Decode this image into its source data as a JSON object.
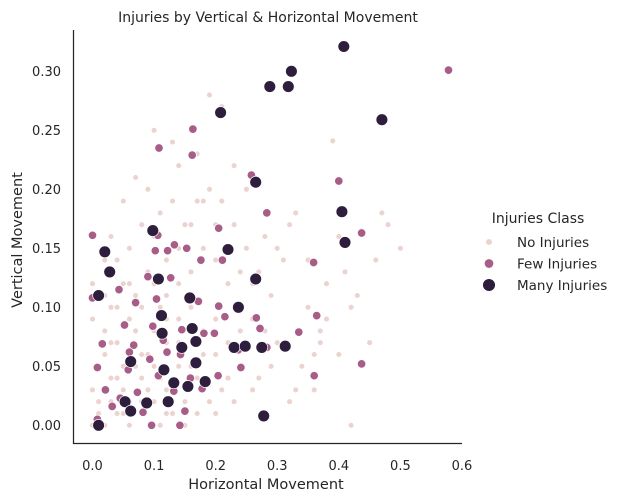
{
  "chart_data": {
    "type": "scatter",
    "title": "Injuries by Vertical & Horizontal Movement",
    "xlabel": "Horizontal Movement",
    "ylabel": "Vertical Movement",
    "xlim": [
      -0.03,
      0.6
    ],
    "ylim": [
      -0.015,
      0.335
    ],
    "xticks": [
      "0.0",
      "0.1",
      "0.2",
      "0.3",
      "0.4",
      "0.5",
      "0.6"
    ],
    "yticks": [
      "0.00",
      "0.05",
      "0.10",
      "0.15",
      "0.20",
      "0.25",
      "0.30"
    ],
    "grid": false,
    "legend_position": "right",
    "legend_title": "Injuries Class",
    "series": [
      {
        "name": "No Injuries",
        "color": "#ebd3cf",
        "points": [
          [
            0.0,
            0.0
          ],
          [
            0.01,
            0.01
          ],
          [
            0.02,
            0.0
          ],
          [
            0.03,
            0.02
          ],
          [
            0.0,
            0.03
          ],
          [
            0.01,
            0.05
          ],
          [
            0.02,
            0.06
          ],
          [
            0.03,
            0.04
          ],
          [
            0.04,
            0.01
          ],
          [
            0.05,
            0.03
          ],
          [
            0.06,
            0.02
          ],
          [
            0.07,
            0.05
          ],
          [
            0.08,
            0.01
          ],
          [
            0.09,
            0.03
          ],
          [
            0.1,
            0.02
          ],
          [
            0.11,
            0.04
          ],
          [
            0.12,
            0.01
          ],
          [
            0.13,
            0.03
          ],
          [
            0.14,
            0.05
          ],
          [
            0.15,
            0.02
          ],
          [
            0.02,
            0.08
          ],
          [
            0.04,
            0.07
          ],
          [
            0.06,
            0.09
          ],
          [
            0.08,
            0.06
          ],
          [
            0.1,
            0.08
          ],
          [
            0.12,
            0.07
          ],
          [
            0.05,
            0.12
          ],
          [
            0.07,
            0.11
          ],
          [
            0.09,
            0.13
          ],
          [
            0.11,
            0.1
          ],
          [
            0.03,
            0.1
          ],
          [
            0.0,
            0.09
          ],
          [
            0.01,
            0.11
          ],
          [
            0.04,
            0.14
          ],
          [
            0.06,
            0.15
          ],
          [
            0.08,
            0.17
          ],
          [
            0.1,
            0.16
          ],
          [
            0.12,
            0.14
          ],
          [
            0.14,
            0.12
          ],
          [
            0.16,
            0.1
          ],
          [
            0.18,
            0.08
          ],
          [
            0.2,
            0.06
          ],
          [
            0.22,
            0.04
          ],
          [
            0.24,
            0.05
          ],
          [
            0.26,
            0.03
          ],
          [
            0.17,
            0.04
          ],
          [
            0.19,
            0.02
          ],
          [
            0.21,
            0.03
          ],
          [
            0.15,
            0.17
          ],
          [
            0.17,
            0.19
          ],
          [
            0.19,
            0.2
          ],
          [
            0.14,
            0.22
          ],
          [
            0.2,
            0.14
          ],
          [
            0.22,
            0.12
          ],
          [
            0.24,
            0.1
          ],
          [
            0.26,
            0.09
          ],
          [
            0.28,
            0.08
          ],
          [
            0.3,
            0.07
          ],
          [
            0.23,
            0.17
          ],
          [
            0.25,
            0.15
          ],
          [
            0.27,
            0.13
          ],
          [
            0.29,
            0.11
          ],
          [
            0.31,
            0.14
          ],
          [
            0.33,
            0.18
          ],
          [
            0.35,
            0.1
          ],
          [
            0.37,
            0.08
          ],
          [
            0.34,
            0.05
          ],
          [
            0.36,
            0.03
          ],
          [
            0.38,
            0.09
          ],
          [
            0.4,
            0.06
          ],
          [
            0.42,
            0.1
          ],
          [
            0.41,
            0.13
          ],
          [
            0.39,
            0.241
          ],
          [
            0.42,
            0.0
          ],
          [
            0.47,
            0.18
          ],
          [
            0.48,
            0.17
          ],
          [
            0.5,
            0.15
          ],
          [
            0.45,
            0.07
          ],
          [
            0.33,
            0.03
          ],
          [
            0.28,
            0.01
          ],
          [
            0.19,
            0.28
          ],
          [
            0.21,
            0.27
          ],
          [
            0.17,
            0.23
          ],
          [
            0.13,
            0.24
          ],
          [
            0.1,
            0.25
          ],
          [
            0.16,
            0.25
          ],
          [
            0.09,
            0.2
          ],
          [
            0.11,
            0.18
          ],
          [
            0.07,
            0.21
          ],
          [
            0.05,
            0.19
          ],
          [
            0.03,
            0.16
          ],
          [
            0.02,
            0.14
          ],
          [
            0.13,
            0.19
          ],
          [
            0.21,
            0.19
          ],
          [
            0.23,
            0.22
          ],
          [
            0.25,
            0.2
          ],
          [
            0.18,
            0.15
          ],
          [
            0.16,
            0.13
          ],
          [
            0.14,
            0.09
          ],
          [
            0.12,
            0.11
          ],
          [
            0.09,
            0.06
          ],
          [
            0.07,
            0.08
          ],
          [
            0.05,
            0.05
          ],
          [
            0.03,
            0.07
          ],
          [
            0.01,
            0.02
          ],
          [
            0.04,
            0.04
          ],
          [
            0.06,
            0.06
          ],
          [
            0.08,
            0.04
          ],
          [
            0.1,
            0.05
          ],
          [
            0.12,
            0.03
          ],
          [
            0.14,
            0.07
          ],
          [
            0.16,
            0.05
          ],
          [
            0.18,
            0.06
          ],
          [
            0.2,
            0.09
          ],
          [
            0.22,
            0.07
          ],
          [
            0.24,
            0.08
          ],
          [
            0.05,
            0.01
          ],
          [
            0.06,
            0.0
          ],
          [
            0.08,
            0.02
          ],
          [
            0.11,
            0.0
          ],
          [
            0.13,
            0.01
          ],
          [
            0.15,
            0.0
          ],
          [
            0.17,
            0.01
          ],
          [
            0.2,
            0.01
          ],
          [
            0.23,
            0.02
          ],
          [
            0.27,
            0.04
          ],
          [
            0.29,
            0.05
          ],
          [
            0.32,
            0.02
          ],
          [
            0.0,
            0.12
          ],
          [
            0.02,
            0.11
          ],
          [
            0.04,
            0.1
          ],
          [
            0.06,
            0.12
          ],
          [
            0.08,
            0.1
          ],
          [
            0.1,
            0.12
          ],
          [
            0.12,
            0.09
          ],
          [
            0.14,
            0.15
          ],
          [
            0.16,
            0.17
          ],
          [
            0.18,
            0.19
          ],
          [
            0.2,
            0.17
          ],
          [
            0.22,
            0.15
          ],
          [
            0.24,
            0.13
          ],
          [
            0.26,
            0.12
          ],
          [
            0.28,
            0.16
          ],
          [
            0.3,
            0.15
          ],
          [
            0.32,
            0.17
          ],
          [
            0.35,
            0.14
          ],
          [
            0.38,
            0.12
          ],
          [
            0.4,
            0.16
          ],
          [
            0.43,
            0.11
          ],
          [
            0.46,
            0.14
          ],
          [
            0.37,
            0.07
          ],
          [
            0.36,
            0.06
          ]
        ]
      },
      {
        "name": "Few Injuries",
        "color": "#a75d87",
        "points": [
          [
            0.578,
            0.301
          ],
          [
            0.163,
            0.251
          ],
          [
            0.108,
            0.235
          ],
          [
            0.162,
            0.229
          ],
          [
            0.258,
            0.212
          ],
          [
            0.4,
            0.207
          ],
          [
            0.283,
            0.18
          ],
          [
            0.205,
            0.167
          ],
          [
            0.437,
            0.163
          ],
          [
            0.0,
            0.161
          ],
          [
            0.106,
            0.161
          ],
          [
            0.133,
            0.153
          ],
          [
            0.102,
            0.148
          ],
          [
            0.153,
            0.15
          ],
          [
            0.122,
            0.148
          ],
          [
            0.176,
            0.14
          ],
          [
            0.211,
            0.14
          ],
          [
            0.359,
            0.138
          ],
          [
            0.09,
            0.126
          ],
          [
            0.127,
            0.125
          ],
          [
            0.0,
            0.108
          ],
          [
            0.043,
            0.115
          ],
          [
            0.104,
            0.107
          ],
          [
            0.07,
            0.104
          ],
          [
            0.172,
            0.105
          ],
          [
            0.205,
            0.101
          ],
          [
            0.215,
            0.092
          ],
          [
            0.266,
            0.091
          ],
          [
            0.364,
            0.093
          ],
          [
            0.052,
            0.085
          ],
          [
            0.098,
            0.084
          ],
          [
            0.145,
            0.081
          ],
          [
            0.181,
            0.078
          ],
          [
            0.198,
            0.078
          ],
          [
            0.272,
            0.082
          ],
          [
            0.335,
            0.079
          ],
          [
            0.016,
            0.069
          ],
          [
            0.067,
            0.068
          ],
          [
            0.121,
            0.062
          ],
          [
            0.093,
            0.056
          ],
          [
            0.143,
            0.06
          ],
          [
            0.237,
            0.064
          ],
          [
            0.283,
            0.066
          ],
          [
            0.008,
            0.049
          ],
          [
            0.058,
            0.047
          ],
          [
            0.107,
            0.042
          ],
          [
            0.159,
            0.04
          ],
          [
            0.204,
            0.042
          ],
          [
            0.241,
            0.049
          ],
          [
            0.437,
            0.052
          ],
          [
            0.36,
            0.042
          ],
          [
            0.021,
            0.03
          ],
          [
            0.073,
            0.028
          ],
          [
            0.132,
            0.029
          ],
          [
            0.178,
            0.031
          ],
          [
            0.032,
            0.016
          ],
          [
            0.082,
            0.011
          ],
          [
            0.15,
            0.012
          ],
          [
            0.008,
            0.005
          ],
          [
            0.096,
            0.0
          ],
          [
            0.142,
            0.0
          ],
          [
            0.045,
            0.023
          ],
          [
            0.06,
            0.062
          ],
          [
            0.115,
            0.072
          ]
        ]
      },
      {
        "name": "Many Injuries",
        "color": "#2d1e3e",
        "points": [
          [
            0.408,
            0.321
          ],
          [
            0.323,
            0.3
          ],
          [
            0.288,
            0.287
          ],
          [
            0.318,
            0.287
          ],
          [
            0.47,
            0.259
          ],
          [
            0.208,
            0.265
          ],
          [
            0.265,
            0.206
          ],
          [
            0.405,
            0.181
          ],
          [
            0.098,
            0.165
          ],
          [
            0.41,
            0.155
          ],
          [
            0.22,
            0.149
          ],
          [
            0.02,
            0.147
          ],
          [
            0.028,
            0.13
          ],
          [
            0.107,
            0.124
          ],
          [
            0.265,
            0.124
          ],
          [
            0.01,
            0.11
          ],
          [
            0.158,
            0.108
          ],
          [
            0.237,
            0.1
          ],
          [
            0.112,
            0.093
          ],
          [
            0.162,
            0.082
          ],
          [
            0.113,
            0.078
          ],
          [
            0.145,
            0.066
          ],
          [
            0.168,
            0.071
          ],
          [
            0.23,
            0.066
          ],
          [
            0.248,
            0.067
          ],
          [
            0.275,
            0.066
          ],
          [
            0.313,
            0.067
          ],
          [
            0.062,
            0.054
          ],
          [
            0.116,
            0.047
          ],
          [
            0.168,
            0.053
          ],
          [
            0.132,
            0.036
          ],
          [
            0.155,
            0.033
          ],
          [
            0.183,
            0.037
          ],
          [
            0.053,
            0.02
          ],
          [
            0.088,
            0.019
          ],
          [
            0.123,
            0.02
          ],
          [
            0.062,
            0.012
          ],
          [
            0.278,
            0.008
          ],
          [
            0.01,
            0.0
          ]
        ]
      }
    ]
  }
}
